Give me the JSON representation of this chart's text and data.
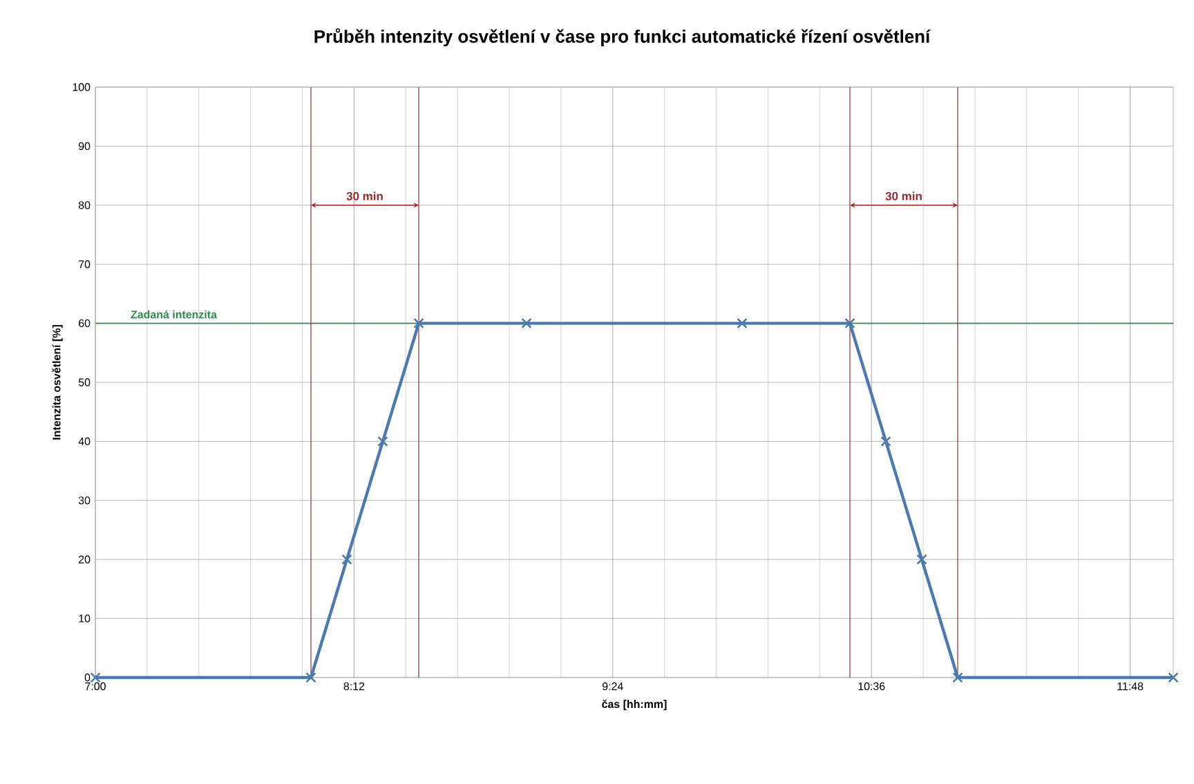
{
  "chart_data": {
    "type": "line",
    "title": "Průběh intenzity osvětlení v čase pro funkci automatické řízení osvětlení",
    "xlabel": "čas [hh:mm]",
    "ylabel": "Intenzita osvětlení [%]",
    "x": [
      7,
      8,
      8.1667,
      8.3333,
      8.5,
      9,
      10,
      10.5,
      10.6667,
      10.8333,
      11,
      12
    ],
    "series": [
      {
        "color": "#4a7ab0",
        "values": [
          0,
          0,
          20,
          40,
          60,
          60,
          60,
          60,
          40,
          20,
          0,
          0
        ]
      }
    ],
    "xlim": [
      7,
      12
    ],
    "xticks": [
      {
        "value": 7,
        "label": "7:00"
      },
      {
        "value": 8.2,
        "label": "8:12"
      },
      {
        "value": 9.4,
        "label": "9:24"
      },
      {
        "value": 10.6,
        "label": "10:36"
      },
      {
        "value": 11.8,
        "label": "11:48"
      }
    ],
    "ylim": [
      0,
      100
    ],
    "yticks": [
      0,
      10,
      20,
      30,
      40,
      50,
      60,
      70,
      80,
      90,
      100
    ],
    "grid": true,
    "marker": "cross",
    "line_style": "solid",
    "ref_lines": [
      {
        "axis": "y",
        "value": 60,
        "label": "Zadaná intenzita",
        "color": "#2e8b4a"
      },
      {
        "axis": "x",
        "value": 8,
        "color": "#a0282a"
      },
      {
        "axis": "x",
        "value": 8.5,
        "color": "#a0282a"
      },
      {
        "axis": "x",
        "value": 10.5,
        "color": "#a0282a"
      },
      {
        "axis": "x",
        "value": 11,
        "color": "#a0282a"
      }
    ],
    "annotations": [
      "30 min",
      "30 min"
    ]
  }
}
